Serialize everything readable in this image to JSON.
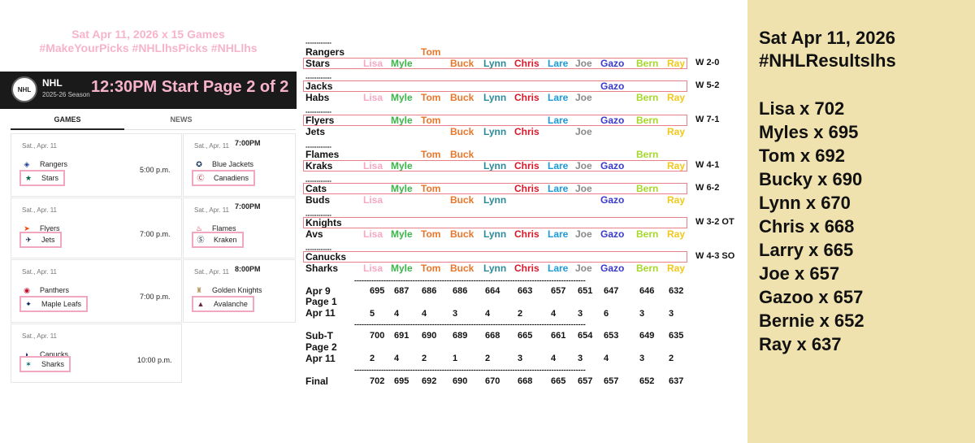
{
  "left": {
    "tag_line1": "Sat Apr 11, 2026   x 15 Games",
    "tag_line2": "#MakeYourPicks #NHLlhsPicks #NHLlhs",
    "nhl_label": "NHL",
    "nhl_season": "2025-26 Season",
    "start_text": "12:30PM Start  Page 2 of 2",
    "tab_games": "GAMES",
    "tab_news": "NEWS",
    "games": [
      {
        "date": "Sat., Apr. 11",
        "away": "Rangers",
        "home": "Stars",
        "time": "5:00 p.m.",
        "away_icon": "rangers-logo",
        "home_icon": "stars-logo"
      },
      {
        "date": "Sat., Apr. 11",
        "away": "Blue Jackets",
        "home": "Canadiens",
        "time": "7:00PM",
        "away_icon": "blue-jackets-logo",
        "home_icon": "canadiens-logo"
      },
      {
        "date": "Sat., Apr. 11",
        "away": "Flyers",
        "home": "Jets",
        "time": "7:00 p.m.",
        "away_icon": "flyers-logo",
        "home_icon": "jets-logo"
      },
      {
        "date": "Sat., Apr. 11",
        "away": "Flames",
        "home": "Kraken",
        "time": "7:00PM",
        "away_icon": "flames-logo",
        "home_icon": "kraken-logo"
      },
      {
        "date": "Sat., Apr. 11",
        "away": "Panthers",
        "home": "Maple Leafs",
        "time": "7:00 p.m.",
        "away_icon": "panthers-logo",
        "home_icon": "maple-leafs-logo"
      },
      {
        "date": "Sat., Apr. 11",
        "away": "Golden Knights",
        "home": "Avalanche",
        "time": "8:00PM",
        "away_icon": "golden-knights-logo",
        "home_icon": "avalanche-logo"
      },
      {
        "date": "Sat., Apr. 11",
        "away": "Canucks",
        "home": "Sharks",
        "time": "10:00 p.m.",
        "away_icon": "canucks-logo",
        "home_icon": "sharks-logo"
      }
    ]
  },
  "colors": {
    "Lisa": "#f7a8c4",
    "Myle": "#3cb54a",
    "Tom": "#e8762b",
    "Buck": "#e8762b",
    "Lynn": "#2c8a9a",
    "Chris": "#d8182a",
    "Lare": "#1a9ad8",
    "Joe": "#8a8a8a",
    "Gazo": "#3a3acb",
    "Bern": "#a6d82a",
    "Ray": "#f2c81a"
  },
  "sep": "------------",
  "picks_table": {
    "col_names": [
      "Lisa",
      "Myle",
      "Tom",
      "Buck",
      "Lynn",
      "Chris",
      "Lare",
      "Joe",
      "Gazo",
      "Bern",
      "Ray"
    ],
    "games": [
      {
        "away": "Rangers",
        "home": "Stars",
        "away_picks": [
          "Tom"
        ],
        "home_picks": [
          "Lisa",
          "Myle",
          "Buck",
          "Lynn",
          "Chris",
          "Lare",
          "Joe",
          "Gazo",
          "Bern",
          "Ray"
        ],
        "result": "W 2-0",
        "winner": "home"
      },
      {
        "away": "Jacks",
        "home": "Habs",
        "away_picks": [
          "Gazo"
        ],
        "home_picks": [
          "Lisa",
          "Myle",
          "Tom",
          "Buck",
          "Lynn",
          "Chris",
          "Lare",
          "Joe",
          "Bern",
          "Ray"
        ],
        "result": "W 5-2",
        "winner": "away"
      },
      {
        "away": "Flyers",
        "home": "Jets",
        "away_picks": [
          "Myle",
          "Tom",
          "Lare",
          "Gazo",
          "Bern"
        ],
        "home_picks": [
          "Buck",
          "Lynn",
          "Chris",
          "Joe",
          "Ray"
        ],
        "result": "W 7-1",
        "winner": "away"
      },
      {
        "away": "Flames",
        "home": "Kraks",
        "away_picks": [
          "Tom",
          "Buck",
          "Bern"
        ],
        "home_picks": [
          "Lisa",
          "Myle",
          "Lynn",
          "Chris",
          "Lare",
          "Joe",
          "Gazo",
          "Ray"
        ],
        "result": "W 4-1",
        "winner": "home"
      },
      {
        "away": "Cats",
        "home": "Buds",
        "away_picks": [
          "Myle",
          "Tom",
          "Chris",
          "Lare",
          "Joe",
          "Bern"
        ],
        "home_picks": [
          "Lisa",
          "Buck",
          "Lynn",
          "Gazo",
          "Ray"
        ],
        "result": "W 6-2",
        "winner": "away"
      },
      {
        "away": "Knights",
        "home": "Avs",
        "away_picks": [],
        "home_picks": [
          "Lisa",
          "Myle",
          "Tom",
          "Buck",
          "Lynn",
          "Chris",
          "Lare",
          "Joe",
          "Gazo",
          "Bern",
          "Ray"
        ],
        "result": "W 3-2 OT",
        "winner": "away"
      },
      {
        "away": "Canucks",
        "home": "Sharks",
        "away_picks": [],
        "home_picks": [
          "Lisa",
          "Myle",
          "Tom",
          "Buck",
          "Lynn",
          "Chris",
          "Lare",
          "Joe",
          "Gazo",
          "Bern",
          "Ray"
        ],
        "result": "W 4-3 SO",
        "winner": "away"
      }
    ],
    "dashes": "-----------------------------------------------------------------------------------------------",
    "apr9_label": "Apr 9",
    "apr9": [
      695,
      687,
      686,
      686,
      664,
      663,
      657,
      651,
      647,
      646,
      632
    ],
    "page1_label": "Page 1",
    "apr11_label": "Apr 11",
    "page1": [
      5,
      4,
      4,
      3,
      4,
      2,
      4,
      3,
      6,
      3,
      3
    ],
    "subt_label": "Sub-T",
    "subt": [
      700,
      691,
      690,
      689,
      668,
      665,
      661,
      654,
      653,
      649,
      635
    ],
    "page2_label": "Page 2",
    "page2": [
      2,
      4,
      2,
      1,
      2,
      3,
      4,
      3,
      4,
      3,
      2
    ],
    "final_label": "Final",
    "final": [
      702,
      695,
      692,
      690,
      670,
      668,
      665,
      657,
      657,
      652,
      637
    ]
  },
  "right": {
    "title": "Sat Apr 11, 2026",
    "hashtag": "#NHLResultslhs",
    "standings": [
      "Lisa  x 702",
      "Myles  x 695",
      "Tom  x 692",
      "Bucky  x 690",
      "Lynn  x 670",
      "Chris  x 668",
      "Larry  x 665",
      "Joe  x 657",
      "Gazoo  x 657",
      "Bernie  x 652",
      "Ray  x 637"
    ]
  }
}
